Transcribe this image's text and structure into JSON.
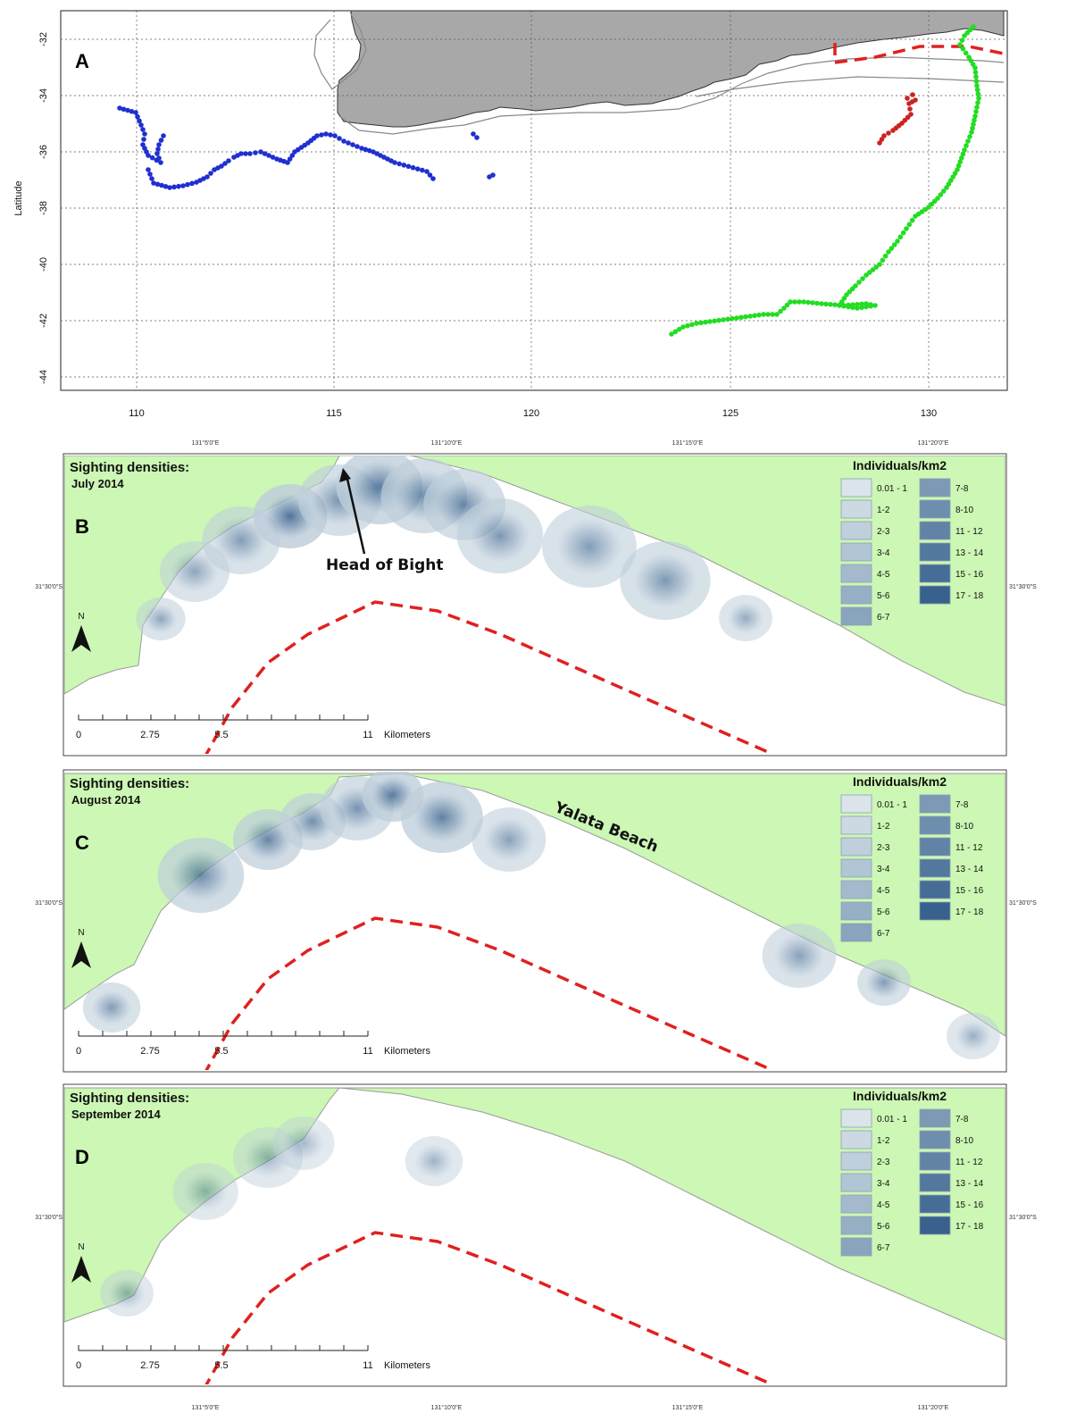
{
  "panel_a": {
    "letter": "A",
    "ylabel": "Latitude",
    "x_ticks": [
      "110",
      "115",
      "120",
      "125",
      "130"
    ],
    "y_ticks": [
      "-32",
      "-34",
      "-36",
      "-38",
      "-40",
      "-42",
      "-44"
    ],
    "colors": {
      "land": "#a8a8a8",
      "blue_track": "#1f2fd0",
      "green_track": "#22dd22",
      "red_track": "#cc2222",
      "boundary": "#e02020"
    }
  },
  "density_panels": [
    {
      "letter": "B",
      "title": "Sighting densities:",
      "subtitle": "July 2014",
      "annotation": "Head of Bight"
    },
    {
      "letter": "C",
      "title": "Sighting densities:",
      "subtitle": "August 2014",
      "annotation": "Yalata Beach"
    },
    {
      "letter": "D",
      "title": "Sighting densities:",
      "subtitle": "September 2014",
      "annotation": ""
    }
  ],
  "legend": {
    "title": "Individuals/km2",
    "classes": [
      "0.01 - 1",
      "1-2",
      "2-3",
      "3-4",
      "4-5",
      "5-6",
      "6-7",
      "7-8",
      "8-10",
      "11 - 12",
      "13 - 14",
      "15 - 16",
      "17 - 18"
    ],
    "colors": [
      "#dae4ea",
      "#cdd9e2",
      "#bfcfdb",
      "#b2c5d4",
      "#a4bacc",
      "#97afc5",
      "#89a4bd",
      "#7c99b5",
      "#6e8ead",
      "#6183a5",
      "#53789d",
      "#466d95",
      "#38628d"
    ]
  },
  "scale_bar": {
    "labels": [
      "0",
      "2.75",
      "5.5",
      "11"
    ],
    "unit": "Kilometers"
  },
  "north_label": "N",
  "coord_labels": {
    "top": [
      "131°5'0\"E",
      "131°10'0\"E",
      "131°15'0\"E",
      "131°20'0\"E"
    ],
    "side": "31°30'0\"S"
  },
  "map_colors": {
    "land": "#ccf7b4",
    "water": "#ffffff",
    "boundary": "#e02020"
  }
}
